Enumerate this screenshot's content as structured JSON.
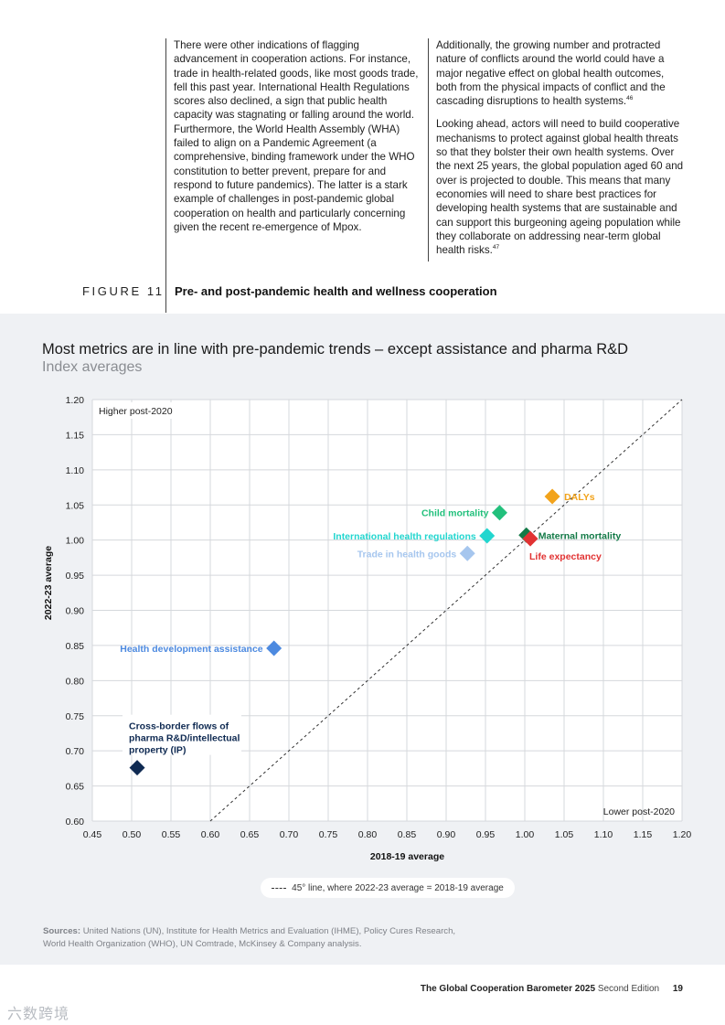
{
  "text": {
    "left_column": "There were other indications of flagging advancement in cooperation actions. For instance, trade in health-related goods, like most goods trade, fell this past year. International Health Regulations scores also declined, a sign that public health capacity was stagnating or falling around the world. Furthermore, the World Health Assembly (WHA) failed to align on a Pandemic Agreement (a comprehensive, binding framework under the WHO constitution to better prevent, prepare for and respond to future pandemics). The latter is a stark example of challenges in post-pandemic global cooperation on health and particularly concerning given the recent re-emergence of Mpox.",
    "right_p1": "Additionally, the growing number and protracted nature of conflicts around the world could have a major negative effect on global health outcomes, both from the physical impacts of conflict and the cascading disruptions to health systems.",
    "right_p1_ref": "46",
    "right_p2": "Looking ahead, actors will need to build cooperative mechanisms to protect against global health threats so that they bolster their own health systems. Over the next 25 years, the global population aged 60 and over is projected to double. This means that many economies will need to share best practices for developing health systems that are sustainable and can support this burgeoning ageing population while they collaborate on addressing near-term global health risks.",
    "right_p2_ref": "47"
  },
  "figure": {
    "label": "FIGURE 11",
    "title": "Pre- and post-pandemic health and wellness cooperation"
  },
  "chart_data": {
    "type": "scatter",
    "title": "Most metrics are in line with pre-pandemic trends – except assistance and pharma R&D",
    "subtitle": "Index averages",
    "xlabel": "2018-19 average",
    "ylabel": "2022-23 average",
    "xlim": [
      0.45,
      1.2
    ],
    "ylim": [
      0.6,
      1.2
    ],
    "xticks": [
      "0.45",
      "0.50",
      "0.55",
      "0.60",
      "0.65",
      "0.70",
      "0.75",
      "0.80",
      "0.85",
      "0.90",
      "0.95",
      "1.00",
      "1.05",
      "1.10",
      "1.15",
      "1.20"
    ],
    "yticks": [
      "0.60",
      "0.65",
      "0.70",
      "0.75",
      "0.80",
      "0.85",
      "0.90",
      "0.95",
      "1.00",
      "1.05",
      "1.10",
      "1.15",
      "1.20"
    ],
    "grid": true,
    "corner_top_left": "Higher post-2020",
    "corner_bottom_right": "Lower post-2020",
    "legend": "45° line, where 2022-23 average = 2018-19 average",
    "points": [
      {
        "name": "DALYs",
        "x": 1.035,
        "y": 1.062,
        "color": "#f2a31b",
        "label_side": "right"
      },
      {
        "name": "Child mortality",
        "x": 0.968,
        "y": 1.039,
        "color": "#22c07c",
        "label_side": "left"
      },
      {
        "name": "International health regulations",
        "x": 0.952,
        "y": 1.006,
        "color": "#22d6cf",
        "label_side": "left"
      },
      {
        "name": "Maternal mortality",
        "x": 1.002,
        "y": 1.007,
        "color": "#137a47",
        "label_side": "right"
      },
      {
        "name": "Life expectancy",
        "x": 1.007,
        "y": 1.002,
        "color": "#e13232",
        "label_side": "below"
      },
      {
        "name": "Trade in health goods",
        "x": 0.927,
        "y": 0.981,
        "color": "#a6c6ee",
        "label_side": "left"
      },
      {
        "name": "Health development assistance",
        "x": 0.681,
        "y": 0.846,
        "color": "#4d8ae0",
        "label_side": "left"
      },
      {
        "name": "Cross-border flows of pharma R&D/intellectual property (IP)",
        "x": 0.507,
        "y": 0.676,
        "color": "#0f2a52",
        "label_side": "above"
      }
    ]
  },
  "sources": {
    "prefix": "Sources:",
    "text": "United Nations (UN), Institute for Health Metrics and Evaluation (IHME), Policy Cures Research, World Health Organization (WHO), UN Comtrade, McKinsey & Company analysis."
  },
  "footer": {
    "publication": "The Global Cooperation Barometer 2025",
    "edition": "Second Edition",
    "page": "19"
  },
  "watermark": "六数跨境"
}
